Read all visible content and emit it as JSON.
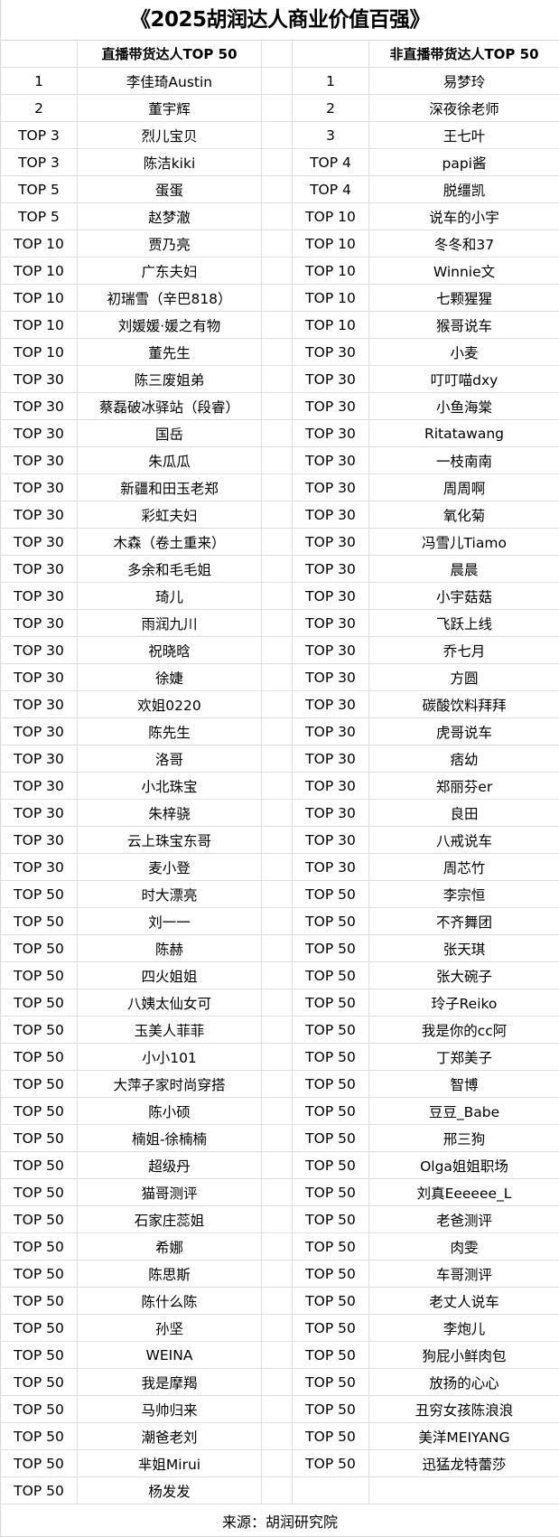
{
  "title": "《2025胡润达人商业价值百强》",
  "headers": {
    "live": "直播带货达人TOP 50",
    "non_live": "非直播带货达人TOP 50"
  },
  "live_list": [
    {
      "rank": "1",
      "name": "李佳琦Austin"
    },
    {
      "rank": "2",
      "name": "董宇辉"
    },
    {
      "rank": "TOP 3",
      "name": "烈儿宝贝"
    },
    {
      "rank": "TOP 3",
      "name": "陈洁kiki"
    },
    {
      "rank": "TOP 5",
      "name": "蛋蛋"
    },
    {
      "rank": "TOP 5",
      "name": "赵梦澈"
    },
    {
      "rank": "TOP 10",
      "name": "贾乃亮"
    },
    {
      "rank": "TOP 10",
      "name": "广东夫妇"
    },
    {
      "rank": "TOP 10",
      "name": "初瑞雪（辛巴818）"
    },
    {
      "rank": "TOP 10",
      "name": "刘媛媛·媛之有物"
    },
    {
      "rank": "TOP 10",
      "name": "董先生"
    },
    {
      "rank": "TOP 30",
      "name": "陈三废姐弟"
    },
    {
      "rank": "TOP 30",
      "name": "蔡磊破冰驿站（段睿）"
    },
    {
      "rank": "TOP 30",
      "name": "国岳"
    },
    {
      "rank": "TOP 30",
      "name": "朱瓜瓜"
    },
    {
      "rank": "TOP 30",
      "name": "新疆和田玉老郑"
    },
    {
      "rank": "TOP 30",
      "name": "彩虹夫妇"
    },
    {
      "rank": "TOP 30",
      "name": "木森（卷土重来）"
    },
    {
      "rank": "TOP 30",
      "name": "多余和毛毛姐"
    },
    {
      "rank": "TOP 30",
      "name": "琦儿"
    },
    {
      "rank": "TOP 30",
      "name": "雨润九川"
    },
    {
      "rank": "TOP 30",
      "name": "祝晓晗"
    },
    {
      "rank": "TOP 30",
      "name": "徐婕"
    },
    {
      "rank": "TOP 30",
      "name": "欢姐0220"
    },
    {
      "rank": "TOP 30",
      "name": "陈先生"
    },
    {
      "rank": "TOP 30",
      "name": "洛哥"
    },
    {
      "rank": "TOP 30",
      "name": "小北珠宝"
    },
    {
      "rank": "TOP 30",
      "name": "朱梓骁"
    },
    {
      "rank": "TOP 30",
      "name": "云上珠宝东哥"
    },
    {
      "rank": "TOP 30",
      "name": "麦小登"
    },
    {
      "rank": "TOP 50",
      "name": "时大漂亮"
    },
    {
      "rank": "TOP 50",
      "name": "刘一一"
    },
    {
      "rank": "TOP 50",
      "name": "陈赫"
    },
    {
      "rank": "TOP 50",
      "name": "四火姐姐"
    },
    {
      "rank": "TOP 50",
      "name": "八姨太仙女可"
    },
    {
      "rank": "TOP 50",
      "name": "玉美人菲菲"
    },
    {
      "rank": "TOP 50",
      "name": "小小101"
    },
    {
      "rank": "TOP 50",
      "name": "大萍子家时尚穿搭"
    },
    {
      "rank": "TOP 50",
      "name": "陈小硕"
    },
    {
      "rank": "TOP 50",
      "name": "楠姐-徐楠楠"
    },
    {
      "rank": "TOP 50",
      "name": "超级丹"
    },
    {
      "rank": "TOP 50",
      "name": "猫哥测评"
    },
    {
      "rank": "TOP 50",
      "name": "石家庄蕊姐"
    },
    {
      "rank": "TOP 50",
      "name": "希娜"
    },
    {
      "rank": "TOP 50",
      "name": "陈思斯"
    },
    {
      "rank": "TOP 50",
      "name": "陈什么陈"
    },
    {
      "rank": "TOP 50",
      "name": "孙坚"
    },
    {
      "rank": "TOP 50",
      "name": "WEINA"
    },
    {
      "rank": "TOP 50",
      "name": "我是摩羯"
    },
    {
      "rank": "TOP 50",
      "name": "马帅归来"
    },
    {
      "rank": "TOP 50",
      "name": "潮爸老刘"
    },
    {
      "rank": "TOP 50",
      "name": "芈姐Mirui"
    },
    {
      "rank": "TOP 50",
      "name": "杨发发"
    }
  ],
  "non_live_list": [
    {
      "rank": "1",
      "name": "易梦玲"
    },
    {
      "rank": "2",
      "name": "深夜徐老师"
    },
    {
      "rank": "3",
      "name": "王七叶"
    },
    {
      "rank": "TOP 4",
      "name": "papi酱"
    },
    {
      "rank": "TOP 4",
      "name": "脱缰凯"
    },
    {
      "rank": "TOP 10",
      "name": "说车的小宇"
    },
    {
      "rank": "TOP 10",
      "name": "冬冬和37"
    },
    {
      "rank": "TOP 10",
      "name": "Winnie文"
    },
    {
      "rank": "TOP 10",
      "name": "七颗猩猩"
    },
    {
      "rank": "TOP 10",
      "name": "猴哥说车"
    },
    {
      "rank": "TOP 30",
      "name": "小麦"
    },
    {
      "rank": "TOP 30",
      "name": "叮叮喵dxy"
    },
    {
      "rank": "TOP 30",
      "name": "小鱼海棠"
    },
    {
      "rank": "TOP 30",
      "name": "Ritatawang"
    },
    {
      "rank": "TOP 30",
      "name": "一枝南南"
    },
    {
      "rank": "TOP 30",
      "name": "周周啊"
    },
    {
      "rank": "TOP 30",
      "name": "氧化菊"
    },
    {
      "rank": "TOP 30",
      "name": "冯雪儿Tiamo"
    },
    {
      "rank": "TOP 30",
      "name": "晨晨"
    },
    {
      "rank": "TOP 30",
      "name": "小宇菇菇"
    },
    {
      "rank": "TOP 30",
      "name": "飞跃上线"
    },
    {
      "rank": "TOP 30",
      "name": "乔七月"
    },
    {
      "rank": "TOP 30",
      "name": "方圆"
    },
    {
      "rank": "TOP 30",
      "name": "碳酸饮料拜拜"
    },
    {
      "rank": "TOP 30",
      "name": "虎哥说车"
    },
    {
      "rank": "TOP 30",
      "name": "痞幼"
    },
    {
      "rank": "TOP 30",
      "name": "郑丽芬er"
    },
    {
      "rank": "TOP 30",
      "name": "良田"
    },
    {
      "rank": "TOP 30",
      "name": "八戒说车"
    },
    {
      "rank": "TOP 30",
      "name": "周芯竹"
    },
    {
      "rank": "TOP 50",
      "name": "李宗恒"
    },
    {
      "rank": "TOP 50",
      "name": "不齐舞团"
    },
    {
      "rank": "TOP 50",
      "name": "张天琪"
    },
    {
      "rank": "TOP 50",
      "name": "张大碗子"
    },
    {
      "rank": "TOP 50",
      "name": "玲子Reiko"
    },
    {
      "rank": "TOP 50",
      "name": "我是你的cc阿"
    },
    {
      "rank": "TOP 50",
      "name": "丁郑美子"
    },
    {
      "rank": "TOP 50",
      "name": "智博"
    },
    {
      "rank": "TOP 50",
      "name": "豆豆_Babe"
    },
    {
      "rank": "TOP 50",
      "name": "邢三狗"
    },
    {
      "rank": "TOP 50",
      "name": "Olga姐姐职场"
    },
    {
      "rank": "TOP 50",
      "name": "刘真Eeeeee_L"
    },
    {
      "rank": "TOP 50",
      "name": "老爸测评"
    },
    {
      "rank": "TOP 50",
      "name": "肉雯"
    },
    {
      "rank": "TOP 50",
      "name": "车哥测评"
    },
    {
      "rank": "TOP 50",
      "name": "老丈人说车"
    },
    {
      "rank": "TOP 50",
      "name": "李炮儿"
    },
    {
      "rank": "TOP 50",
      "name": "狗屁小鲜肉包"
    },
    {
      "rank": "TOP 50",
      "name": "放扬的心心"
    },
    {
      "rank": "TOP 50",
      "name": "丑穷女孩陈浪浪"
    },
    {
      "rank": "TOP 50",
      "name": "美洋MEIYANG"
    },
    {
      "rank": "TOP 50",
      "name": "迅猛龙特蕾莎"
    }
  ],
  "source": "来源：胡润研究院"
}
